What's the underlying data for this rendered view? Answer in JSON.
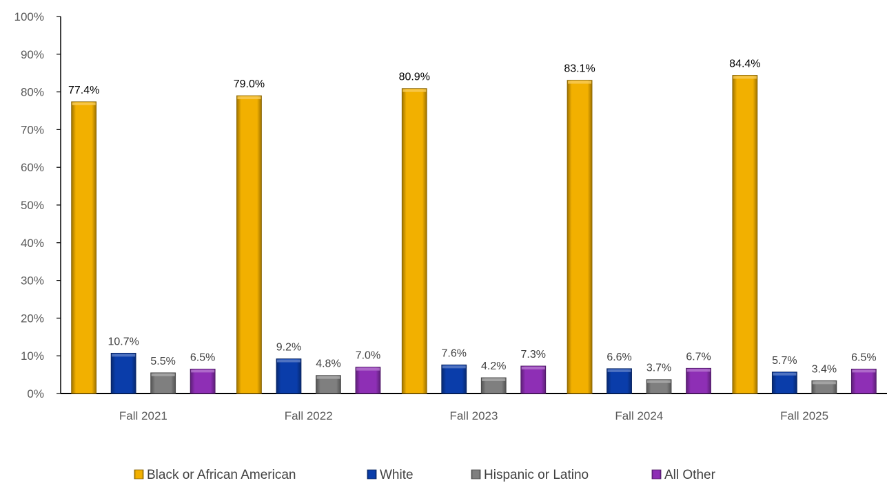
{
  "chart_data": {
    "type": "bar",
    "title": "",
    "xlabel": "",
    "ylabel": "",
    "ylim": [
      0,
      100
    ],
    "y_ticks": [
      "0%",
      "10%",
      "20%",
      "30%",
      "40%",
      "50%",
      "60%",
      "70%",
      "80%",
      "90%",
      "100%"
    ],
    "categories": [
      "Fall 2021",
      "Fall 2022",
      "Fall 2023",
      "Fall 2024",
      "Fall 2025"
    ],
    "grid": false,
    "legend_position": "bottom",
    "series": [
      {
        "name": "Black or African American",
        "color": "#F2B000",
        "values": [
          77.4,
          79.0,
          80.9,
          83.1,
          84.4
        ],
        "labels": [
          "77.4%",
          "79.0%",
          "80.9%",
          "83.1%",
          "84.4%"
        ]
      },
      {
        "name": "White",
        "color": "#0A3DAA",
        "values": [
          10.7,
          9.2,
          7.6,
          6.6,
          5.7
        ],
        "labels": [
          "10.7%",
          "9.2%",
          "7.6%",
          "6.6%",
          "5.7%"
        ]
      },
      {
        "name": "Hispanic or Latino",
        "color": "#7F7F7F",
        "values": [
          5.5,
          4.8,
          4.2,
          3.7,
          3.4
        ],
        "labels": [
          "5.5%",
          "4.8%",
          "4.2%",
          "3.7%",
          "3.4%"
        ]
      },
      {
        "name": "All Other",
        "color": "#8E2FB5",
        "values": [
          6.5,
          7.0,
          7.3,
          6.7,
          6.5
        ],
        "labels": [
          "6.5%",
          "7.0%",
          "7.3%",
          "6.7%",
          "6.5%"
        ]
      }
    ]
  }
}
